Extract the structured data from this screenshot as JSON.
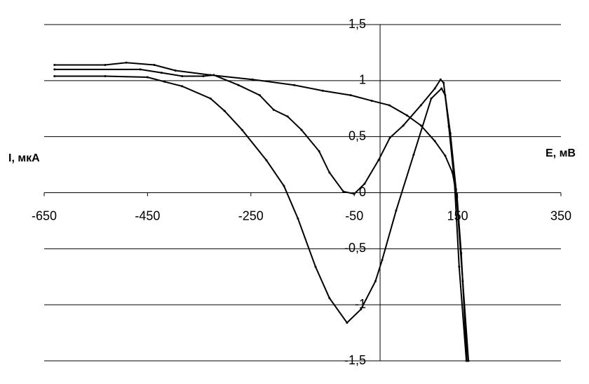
{
  "chart_data": {
    "type": "line",
    "x_label": "E, мВ",
    "y_label": "I, мкА",
    "xlim": [
      -650,
      350
    ],
    "xticks": [
      -650,
      -450,
      -250,
      -50,
      150,
      350
    ],
    "ylim": [
      -1.5,
      1.5
    ],
    "yticks": [
      {
        "value": -1.5,
        "label": "-1,5"
      },
      -1,
      {
        "value": -0.5,
        "label": "-0,5"
      },
      0,
      {
        "value": 0.5,
        "label": "0,5"
      },
      1,
      {
        "value": 1.5,
        "label": "1,5"
      }
    ],
    "grid": true,
    "series": [
      {
        "color": "#000000",
        "x": [
          -630,
          -532,
          -450,
          -417,
          -383,
          -328,
          -301,
          -267,
          -220,
          -186,
          -159,
          -125,
          -98,
          -64,
          -37,
          -9,
          4,
          31,
          65,
          99,
          119,
          126,
          136,
          147,
          160,
          171
        ],
        "values": [
          1.04,
          1.04,
          1.03,
          0.99,
          0.95,
          0.84,
          0.73,
          0.56,
          0.29,
          0.06,
          -0.23,
          -0.66,
          -0.94,
          -1.16,
          -1.04,
          -0.79,
          -0.6,
          -0.16,
          0.34,
          0.84,
          0.93,
          0.87,
          0.53,
          0.03,
          -0.79,
          -1.5
        ]
      },
      {
        "color": "#000000",
        "x": [
          -630,
          -464,
          -423,
          -383,
          -342,
          -322,
          -274,
          -233,
          -206,
          -179,
          -152,
          -118,
          -98,
          -71,
          -50,
          -30,
          -3,
          19,
          45,
          79,
          106,
          117,
          123,
          133,
          144,
          153,
          167
        ],
        "values": [
          1.1,
          1.1,
          1.07,
          1.04,
          1.04,
          1.05,
          0.96,
          0.87,
          0.74,
          0.68,
          0.56,
          0.37,
          0.18,
          0.01,
          -0.01,
          0.08,
          0.29,
          0.49,
          0.6,
          0.78,
          0.93,
          1.01,
          0.98,
          0.59,
          0.09,
          -0.66,
          -1.5
        ]
      },
      {
        "color": "#000000",
        "x": [
          -630,
          -532,
          -491,
          -437,
          -396,
          -328,
          -247,
          -166,
          -111,
          -57,
          -16,
          18,
          52,
          79,
          106,
          126,
          140,
          149,
          157,
          168
        ],
        "values": [
          1.14,
          1.14,
          1.16,
          1.14,
          1.09,
          1.05,
          1.01,
          0.96,
          0.91,
          0.87,
          0.82,
          0.78,
          0.69,
          0.6,
          0.46,
          0.33,
          0.18,
          -0.04,
          -0.54,
          -1.5
        ]
      }
    ]
  }
}
